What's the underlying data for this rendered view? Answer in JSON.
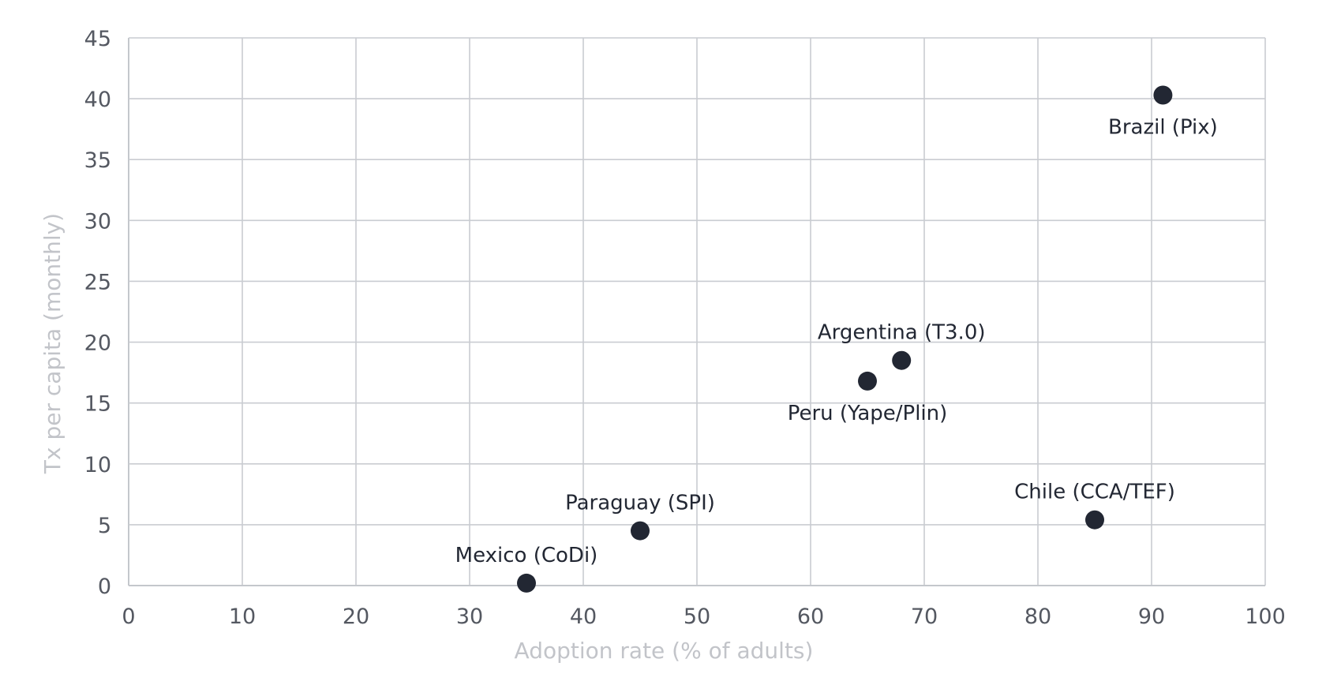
{
  "chart_data": {
    "type": "scatter",
    "title": "",
    "xlabel": "Adoption rate (% of adults)",
    "ylabel": "Tx per capita (monthly)",
    "xlim": [
      0,
      100
    ],
    "ylim": [
      0,
      45
    ],
    "xticks": [
      0,
      10,
      20,
      30,
      40,
      50,
      60,
      70,
      80,
      90,
      100
    ],
    "yticks": [
      0,
      5,
      10,
      15,
      20,
      25,
      30,
      35,
      40,
      45
    ],
    "grid": true,
    "legend": null,
    "marker_color": "#222733",
    "points": [
      {
        "label": "Brazil (Pix)",
        "x": 91,
        "y": 40.3,
        "label_pos": "below"
      },
      {
        "label": "Argentina (T3.0)",
        "x": 68,
        "y": 18.5,
        "label_pos": "above"
      },
      {
        "label": "Peru (Yape/Plin)",
        "x": 65,
        "y": 16.8,
        "label_pos": "below"
      },
      {
        "label": "Chile (CCA/TEF)",
        "x": 85,
        "y": 5.4,
        "label_pos": "above"
      },
      {
        "label": "Paraguay (SPI)",
        "x": 45,
        "y": 4.5,
        "label_pos": "above"
      },
      {
        "label": "Mexico (CoDi)",
        "x": 35,
        "y": 0.2,
        "label_pos": "above"
      }
    ]
  }
}
